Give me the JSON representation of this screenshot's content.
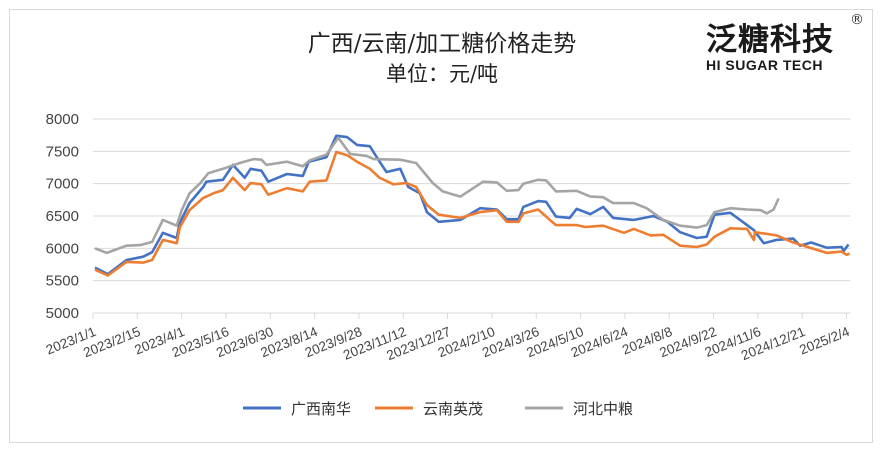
{
  "chart_data": {
    "type": "line",
    "title": "广西/云南/加工糖价格走势",
    "subtitle": "单位：元/吨",
    "xlabel": "",
    "ylabel": "",
    "ylim": [
      5000,
      8000
    ],
    "yticks": [
      "8000",
      "7500",
      "7000",
      "6500",
      "6000",
      "5500",
      "5000"
    ],
    "xlim": [
      "2023-01-01",
      "2025-02-08"
    ],
    "xticks": [
      "2023/1/1",
      "2023/2/15",
      "2023/4/1",
      "2023/5/16",
      "2023/6/30",
      "2023/8/14",
      "2023/9/28",
      "2023/11/12",
      "2023/12/27",
      "2024/2/10",
      "2024/3/26",
      "2024/5/10",
      "2024/6/24",
      "2024/8/8",
      "2024/9/22",
      "2024/11/6",
      "2024/12/21",
      "2025/2/4"
    ],
    "grid": true,
    "legend_position": "bottom",
    "series": [
      {
        "name": "广西南华",
        "color": "#4472C4",
        "points": [
          [
            "2023-01-03",
            5700
          ],
          [
            "2023-01-16",
            5600
          ],
          [
            "2023-02-04",
            5820
          ],
          [
            "2023-02-21",
            5870
          ],
          [
            "2023-03-02",
            5940
          ],
          [
            "2023-03-13",
            6240
          ],
          [
            "2023-03-27",
            6160
          ],
          [
            "2023-03-30",
            6390
          ],
          [
            "2023-04-09",
            6700
          ],
          [
            "2023-04-23",
            6950
          ],
          [
            "2023-04-26",
            7030
          ],
          [
            "2023-05-13",
            7060
          ],
          [
            "2023-05-23",
            7290
          ],
          [
            "2023-06-04",
            7090
          ],
          [
            "2023-06-10",
            7230
          ],
          [
            "2023-06-21",
            7200
          ],
          [
            "2023-06-28",
            7030
          ],
          [
            "2023-07-17",
            7150
          ],
          [
            "2023-08-02",
            7120
          ],
          [
            "2023-08-08",
            7340
          ],
          [
            "2023-08-26",
            7410
          ],
          [
            "2023-09-05",
            7740
          ],
          [
            "2023-09-16",
            7720
          ],
          [
            "2023-09-26",
            7600
          ],
          [
            "2023-10-09",
            7580
          ],
          [
            "2023-10-19",
            7340
          ],
          [
            "2023-10-26",
            7180
          ],
          [
            "2023-11-09",
            7230
          ],
          [
            "2023-11-17",
            6950
          ],
          [
            "2023-11-29",
            6850
          ],
          [
            "2023-12-06",
            6560
          ],
          [
            "2023-12-18",
            6410
          ],
          [
            "2024-01-09",
            6440
          ],
          [
            "2024-01-29",
            6620
          ],
          [
            "2024-02-15",
            6600
          ],
          [
            "2024-02-25",
            6450
          ],
          [
            "2024-03-08",
            6450
          ],
          [
            "2024-03-13",
            6640
          ],
          [
            "2024-03-28",
            6730
          ],
          [
            "2024-04-05",
            6720
          ],
          [
            "2024-04-15",
            6490
          ],
          [
            "2024-04-29",
            6470
          ],
          [
            "2024-05-06",
            6610
          ],
          [
            "2024-05-20",
            6530
          ],
          [
            "2024-06-02",
            6640
          ],
          [
            "2024-06-12",
            6470
          ],
          [
            "2024-07-03",
            6440
          ],
          [
            "2024-07-23",
            6500
          ],
          [
            "2024-08-06",
            6410
          ],
          [
            "2024-08-19",
            6250
          ],
          [
            "2024-09-05",
            6160
          ],
          [
            "2024-09-15",
            6180
          ],
          [
            "2024-09-23",
            6520
          ],
          [
            "2024-10-09",
            6550
          ],
          [
            "2024-10-19",
            6440
          ],
          [
            "2024-11-02",
            6280
          ],
          [
            "2024-11-12",
            6080
          ],
          [
            "2024-11-25",
            6130
          ],
          [
            "2024-12-12",
            6150
          ],
          [
            "2024-12-19",
            6040
          ],
          [
            "2024-12-30",
            6090
          ],
          [
            "2025-01-15",
            6010
          ],
          [
            "2025-01-30",
            6020
          ],
          [
            "2025-02-01",
            5960
          ],
          [
            "2025-02-06",
            6060
          ]
        ]
      },
      {
        "name": "云南英茂",
        "color": "#ED7D31",
        "points": [
          [
            "2023-01-03",
            5670
          ],
          [
            "2023-01-16",
            5580
          ],
          [
            "2023-02-04",
            5790
          ],
          [
            "2023-02-21",
            5780
          ],
          [
            "2023-03-02",
            5820
          ],
          [
            "2023-03-13",
            6130
          ],
          [
            "2023-03-27",
            6080
          ],
          [
            "2023-03-30",
            6320
          ],
          [
            "2023-04-09",
            6590
          ],
          [
            "2023-04-23",
            6780
          ],
          [
            "2023-05-03",
            6850
          ],
          [
            "2023-05-13",
            6900
          ],
          [
            "2023-05-23",
            7090
          ],
          [
            "2023-06-04",
            6900
          ],
          [
            "2023-06-10",
            7010
          ],
          [
            "2023-06-21",
            6990
          ],
          [
            "2023-06-28",
            6830
          ],
          [
            "2023-07-17",
            6930
          ],
          [
            "2023-08-02",
            6880
          ],
          [
            "2023-08-09",
            7030
          ],
          [
            "2023-08-26",
            7050
          ],
          [
            "2023-09-05",
            7490
          ],
          [
            "2023-09-16",
            7440
          ],
          [
            "2023-09-26",
            7340
          ],
          [
            "2023-10-09",
            7230
          ],
          [
            "2023-10-19",
            7090
          ],
          [
            "2023-11-02",
            6990
          ],
          [
            "2023-11-15",
            7010
          ],
          [
            "2023-11-25",
            6950
          ],
          [
            "2023-12-06",
            6670
          ],
          [
            "2023-12-18",
            6520
          ],
          [
            "2024-01-09",
            6470
          ],
          [
            "2024-01-29",
            6560
          ],
          [
            "2024-02-15",
            6590
          ],
          [
            "2024-02-25",
            6410
          ],
          [
            "2024-03-08",
            6410
          ],
          [
            "2024-03-13",
            6540
          ],
          [
            "2024-03-28",
            6600
          ],
          [
            "2024-04-11",
            6410
          ],
          [
            "2024-04-15",
            6360
          ],
          [
            "2024-05-06",
            6360
          ],
          [
            "2024-05-15",
            6330
          ],
          [
            "2024-06-02",
            6350
          ],
          [
            "2024-06-23",
            6240
          ],
          [
            "2024-07-03",
            6300
          ],
          [
            "2024-07-20",
            6200
          ],
          [
            "2024-08-02",
            6210
          ],
          [
            "2024-08-19",
            6040
          ],
          [
            "2024-09-05",
            6020
          ],
          [
            "2024-09-15",
            6060
          ],
          [
            "2024-09-23",
            6180
          ],
          [
            "2024-10-09",
            6310
          ],
          [
            "2024-10-26",
            6300
          ],
          [
            "2024-11-02",
            6130
          ],
          [
            "2024-11-03",
            6250
          ],
          [
            "2024-11-25",
            6200
          ],
          [
            "2024-12-12",
            6090
          ],
          [
            "2024-12-29",
            6010
          ],
          [
            "2025-01-15",
            5930
          ],
          [
            "2025-01-30",
            5950
          ],
          [
            "2025-02-04",
            5900
          ],
          [
            "2025-02-07",
            5920
          ]
        ]
      },
      {
        "name": "河北中粮",
        "color": "#A5A5A5",
        "points": [
          [
            "2023-01-03",
            6000
          ],
          [
            "2023-01-15",
            5930
          ],
          [
            "2023-02-04",
            6040
          ],
          [
            "2023-02-18",
            6050
          ],
          [
            "2023-03-02",
            6100
          ],
          [
            "2023-03-13",
            6440
          ],
          [
            "2023-03-27",
            6350
          ],
          [
            "2023-04-01",
            6590
          ],
          [
            "2023-04-09",
            6850
          ],
          [
            "2023-04-20",
            7010
          ],
          [
            "2023-04-28",
            7160
          ],
          [
            "2023-05-13",
            7230
          ],
          [
            "2023-05-30",
            7320
          ],
          [
            "2023-06-13",
            7380
          ],
          [
            "2023-06-21",
            7370
          ],
          [
            "2023-06-26",
            7290
          ],
          [
            "2023-07-17",
            7340
          ],
          [
            "2023-08-02",
            7270
          ],
          [
            "2023-08-09",
            7360
          ],
          [
            "2023-08-26",
            7450
          ],
          [
            "2023-09-07",
            7710
          ],
          [
            "2023-09-19",
            7460
          ],
          [
            "2023-10-06",
            7430
          ],
          [
            "2023-10-13",
            7380
          ],
          [
            "2023-11-09",
            7370
          ],
          [
            "2023-11-25",
            7320
          ],
          [
            "2023-12-12",
            7010
          ],
          [
            "2023-12-22",
            6880
          ],
          [
            "2024-01-09",
            6800
          ],
          [
            "2024-02-01",
            7030
          ],
          [
            "2024-02-15",
            7020
          ],
          [
            "2024-02-25",
            6890
          ],
          [
            "2024-03-08",
            6900
          ],
          [
            "2024-03-13",
            7000
          ],
          [
            "2024-03-28",
            7060
          ],
          [
            "2024-04-05",
            7050
          ],
          [
            "2024-04-15",
            6880
          ],
          [
            "2024-05-06",
            6890
          ],
          [
            "2024-05-20",
            6800
          ],
          [
            "2024-06-02",
            6790
          ],
          [
            "2024-06-12",
            6700
          ],
          [
            "2024-07-03",
            6700
          ],
          [
            "2024-07-16",
            6620
          ],
          [
            "2024-08-02",
            6440
          ],
          [
            "2024-08-19",
            6350
          ],
          [
            "2024-09-05",
            6320
          ],
          [
            "2024-09-15",
            6360
          ],
          [
            "2024-09-23",
            6560
          ],
          [
            "2024-10-09",
            6620
          ],
          [
            "2024-10-26",
            6600
          ],
          [
            "2024-11-09",
            6590
          ],
          [
            "2024-11-15",
            6540
          ],
          [
            "2024-11-22",
            6600
          ],
          [
            "2024-11-27",
            6770
          ]
        ]
      }
    ]
  },
  "logo": {
    "cn": "泛糖科技",
    "en": "HI SUGAR TECH",
    "reg": "®"
  }
}
